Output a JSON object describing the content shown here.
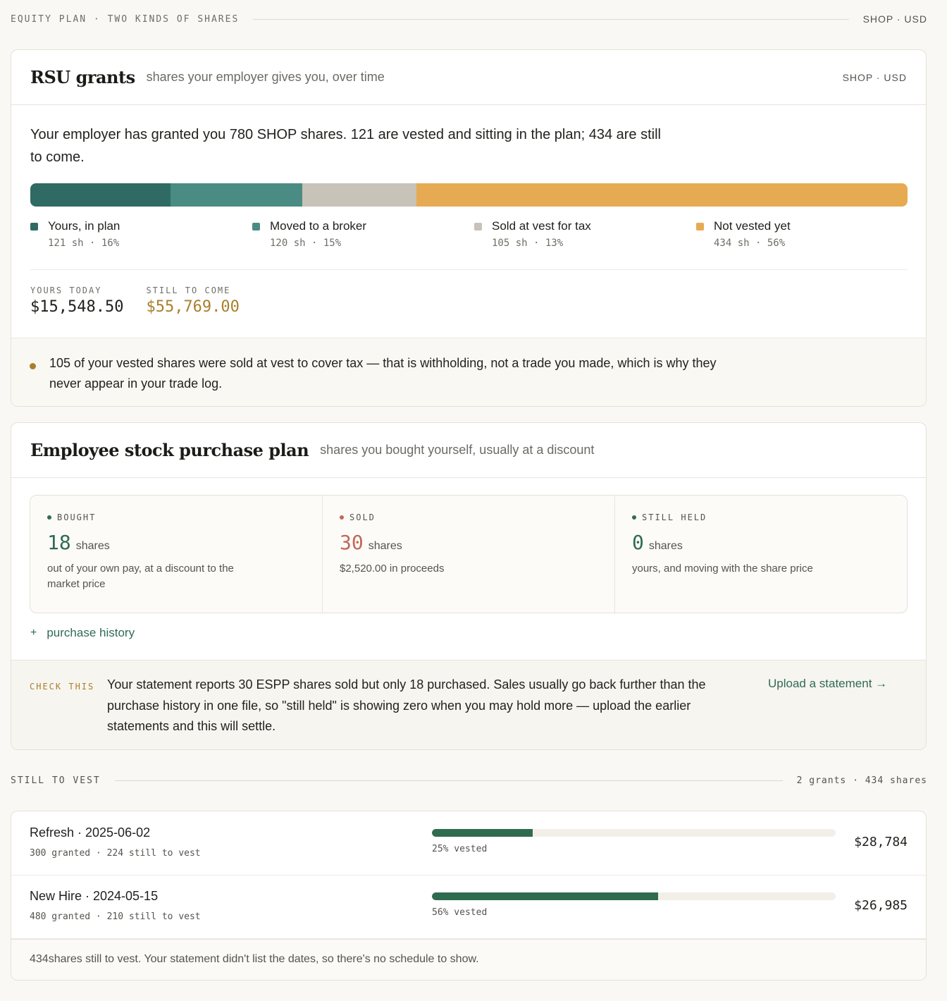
{
  "header": {
    "left": "EQUITY PLAN · TWO KINDS OF SHARES",
    "right": "SHOP · USD"
  },
  "rsu": {
    "title": "RSU grants",
    "subtitle": "shares your employer gives you, over time",
    "right": "SHOP · USD",
    "intro": "Your employer has granted you 780 SHOP shares. 121 are vested and sitting in the plan; 434 are still to come.",
    "segments": [
      {
        "label": "Yours, in plan",
        "sub": "121 sh · 16%",
        "share": 16,
        "color": "#2f6b64"
      },
      {
        "label": "Moved to a broker",
        "sub": "120 sh · 15%",
        "share": 15,
        "color": "#4a8c84"
      },
      {
        "label": "Sold at vest for tax",
        "sub": "105 sh · 13%",
        "share": 13,
        "color": "#c8c3b8"
      },
      {
        "label": "Not vested yet",
        "sub": "434 sh · 56%",
        "share": 56,
        "color": "#e6ab52"
      }
    ],
    "yours_today_label": "YOURS TODAY",
    "yours_today_value": "$15,548.50",
    "still_to_come_label": "STILL TO COME",
    "still_to_come_value": "$55,769.00",
    "note": "105 of your vested shares were sold at vest to cover tax — that is withholding, not a trade you made, which is why they never appear in your trade log."
  },
  "espp": {
    "title": "Employee stock purchase plan",
    "subtitle": "shares you bought yourself, usually at a discount",
    "cells": [
      {
        "key": "BOUGHT",
        "num": "18",
        "unit": "shares",
        "desc": "out of your own pay, at a discount to the market price",
        "color": "#2f6b57",
        "dot": "#2f6b57"
      },
      {
        "key": "SOLD",
        "num": "30",
        "unit": "shares",
        "desc": "$2,520.00 in proceeds",
        "color": "#c0695a",
        "dot": "#c0695a"
      },
      {
        "key": "STILL HELD",
        "num": "0",
        "unit": "shares",
        "desc": "yours, and moving with the share price",
        "color": "#2f6b57",
        "dot": "#2f6b57"
      }
    ],
    "history_plus": "+",
    "history_label": "purchase history",
    "check_label": "CHECK THIS",
    "check_text": "Your statement reports 30 ESPP shares sold but only 18 purchased. Sales usually go back further than the purchase history in one file, so \"still held\" is showing zero when you may hold more — upload the earlier statements and this will settle.",
    "upload_label": "Upload a statement →"
  },
  "vest": {
    "section_label": "STILL TO VEST",
    "section_right": "2 grants · 434 shares",
    "rows": [
      {
        "title": "Refresh · 2025-06-02",
        "sub": "300 granted · 224 still to vest",
        "pct_value": 25,
        "pct": "25% vested",
        "amount": "$28,784"
      },
      {
        "title": "New Hire · 2024-05-15",
        "sub": "480 granted · 210 still to vest",
        "pct_value": 56,
        "pct": "56% vested",
        "amount": "$26,985"
      }
    ],
    "footer": "434shares still to vest. Your statement didn't list the dates, so there's no schedule to show."
  },
  "colors": {
    "accent": "#2f6b57",
    "gold": "#a97f2c",
    "bad": "#c0695a"
  }
}
